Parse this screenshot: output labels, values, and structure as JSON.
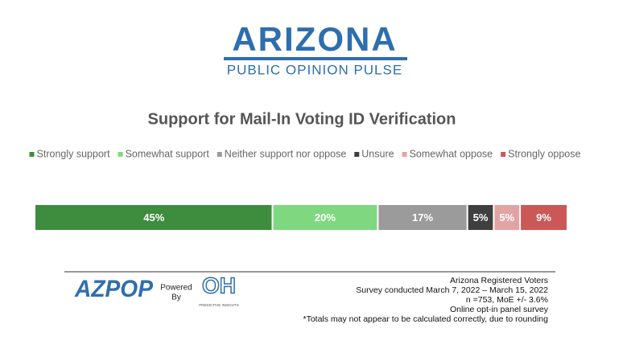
{
  "branding": {
    "logo_title": "ARIZONA",
    "logo_subtitle": "PUBLIC OPINION PULSE",
    "az_logo": "AZPOP",
    "powered": "Powered",
    "by": "By",
    "oh_logo": "OH",
    "oh_caption": "PREDICTIVE INSIGHTS"
  },
  "chart_data": {
    "type": "bar",
    "orientation": "horizontal",
    "stacked": true,
    "title": "Support for Mail-In Voting ID Verification",
    "categories": [
      null
    ],
    "series": [
      {
        "name": "Strongly support",
        "color": "#3e8c3e",
        "values": [
          45
        ],
        "value_labels": [
          "45%"
        ]
      },
      {
        "name": "Somewhat support",
        "color": "#7fd87f",
        "values": [
          20
        ],
        "value_labels": [
          "20%"
        ]
      },
      {
        "name": "Neither support nor oppose",
        "color": "#9b9b9b",
        "values": [
          17
        ],
        "value_labels": [
          "17%"
        ]
      },
      {
        "name": "Unsure",
        "color": "#3f3f3f",
        "values": [
          5
        ],
        "value_labels": [
          "5%"
        ]
      },
      {
        "name": "Somewhat oppose",
        "color": "#e2a3a3",
        "values": [
          5
        ],
        "value_labels": [
          "5%"
        ]
      },
      {
        "name": "Strongly oppose",
        "color": "#cc5757",
        "values": [
          9
        ],
        "value_labels": [
          "9%"
        ]
      }
    ],
    "legend": "top"
  },
  "footer": {
    "lines": [
      "Arizona Registered Voters",
      "Survey conducted March 7, 2022 – March 15, 2022",
      "n =753, MoE +/-  3.6%",
      "Online opt-in panel survey",
      "*Totals may not appear to be calculated correctly, due to rounding"
    ]
  }
}
